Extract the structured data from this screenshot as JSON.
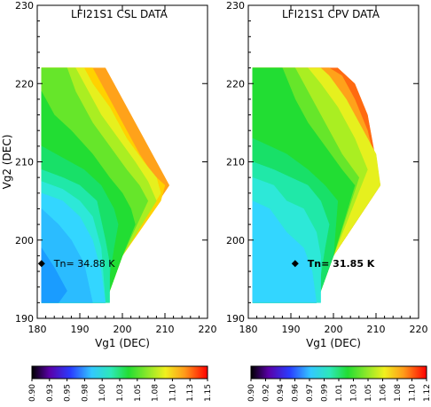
{
  "chart_data": [
    {
      "type": "heatmap",
      "title": "LFI21S1 CSL DATA",
      "xlabel": "Vg1 (DEC)",
      "ylabel": "Vg2 (DEC)",
      "xlim": [
        180,
        220
      ],
      "ylim": [
        190,
        230
      ],
      "xticks": [
        180,
        190,
        200,
        210,
        220
      ],
      "yticks": [
        190,
        200,
        210,
        220,
        230
      ],
      "marker": {
        "x": 181,
        "y": 197,
        "label": "Tn= 34.88 K"
      },
      "colorbar": {
        "min": 0.9,
        "max": 1.15,
        "tick_labels": [
          "0.90",
          "0.93",
          "0.95",
          "0.98",
          "1.00",
          "1.03",
          "1.05",
          "1.08",
          "1.10",
          "1.13",
          "1.15"
        ]
      },
      "contour_bands": [
        {
          "level": 0.97,
          "color": "#1a9cff",
          "points": [
            [
              181,
              199
            ],
            [
              184,
              196.5
            ],
            [
              187,
              193.5
            ],
            [
              185,
              192
            ],
            [
              181,
              192
            ]
          ]
        },
        {
          "level": 0.98,
          "color": "#2bbcff",
          "points": [
            [
              181,
              204
            ],
            [
              185,
              202
            ],
            [
              188,
              200
            ],
            [
              191,
              197
            ],
            [
              193,
              192
            ],
            [
              181,
              192
            ]
          ]
        },
        {
          "level": 0.99,
          "color": "#33d6ff",
          "points": [
            [
              181,
              206
            ],
            [
              186,
              205
            ],
            [
              190,
              203
            ],
            [
              193,
              200
            ],
            [
              195,
              196
            ],
            [
              196,
              192
            ],
            [
              181,
              192
            ]
          ]
        },
        {
          "level": 1.0,
          "color": "#2de8d8",
          "points": [
            [
              181,
              207.5
            ],
            [
              186,
              206.5
            ],
            [
              190,
              205
            ],
            [
              193,
              203
            ],
            [
              195,
              199
            ],
            [
              196,
              192
            ],
            [
              181,
              192
            ]
          ]
        },
        {
          "level": 1.01,
          "color": "#20e8a8",
          "points": [
            [
              181,
              209
            ],
            [
              186,
              208
            ],
            [
              190,
              207
            ],
            [
              194,
              205
            ],
            [
              196,
              200
            ],
            [
              197,
              197
            ],
            [
              197,
              192
            ],
            [
              181,
              192
            ]
          ]
        },
        {
          "level": 1.02,
          "color": "#18e068",
          "points": [
            [
              181,
              212
            ],
            [
              186,
              210.5
            ],
            [
              191,
              209
            ],
            [
              195,
              207
            ],
            [
              198,
              204
            ],
            [
              199,
              202
            ],
            [
              198,
              199
            ],
            [
              196,
              192
            ],
            [
              181,
              192
            ]
          ]
        },
        {
          "level": 1.03,
          "color": "#22dd33",
          "points": [
            [
              181,
              219
            ],
            [
              184,
              216
            ],
            [
              188,
              214
            ],
            [
              193,
              211
            ],
            [
              197,
              208
            ],
            [
              200,
              206
            ],
            [
              202,
              204
            ],
            [
              203,
              202
            ],
            [
              200,
              198
            ],
            [
              196,
              192
            ],
            [
              181,
              192
            ]
          ]
        },
        {
          "level": 1.05,
          "color": "#66e62a",
          "points": [
            [
              181,
              222
            ],
            [
              187,
              222
            ],
            [
              189,
              219
            ],
            [
              193,
              215
            ],
            [
              197,
              212
            ],
            [
              201,
              209
            ],
            [
              204,
              207
            ],
            [
              206,
              205
            ],
            [
              200,
              198
            ],
            [
              196,
              192
            ],
            [
              181,
              192
            ]
          ]
        },
        {
          "level": 1.07,
          "color": "#aaee22",
          "points": [
            [
              181,
              222
            ],
            [
              189,
              222
            ],
            [
              191,
              220
            ],
            [
              195,
              216
            ],
            [
              199,
              213
            ],
            [
              203,
              210
            ],
            [
              206,
              207.5
            ],
            [
              208,
              205
            ],
            [
              200,
              198
            ],
            [
              196,
              192
            ],
            [
              181,
              192
            ]
          ]
        },
        {
          "level": 1.09,
          "color": "#e6f01e",
          "points": [
            [
              181,
              222
            ],
            [
              191,
              222
            ],
            [
              193,
              220
            ],
            [
              197,
              217
            ],
            [
              201,
              213
            ],
            [
              205,
              210
            ],
            [
              208,
              208
            ],
            [
              209,
              206
            ],
            [
              200,
              198
            ],
            [
              196,
              192
            ],
            [
              181,
              192
            ]
          ]
        },
        {
          "level": 1.11,
          "color": "#ffd200",
          "points": [
            [
              181,
              222
            ],
            [
              193,
              222
            ],
            [
              196,
              219
            ],
            [
              200,
              215
            ],
            [
              204,
              211
            ],
            [
              207,
              208.5
            ],
            [
              210,
              207
            ],
            [
              209,
              205
            ],
            [
              200,
              198
            ],
            [
              196,
              192
            ],
            [
              181,
              192
            ]
          ]
        },
        {
          "level": 1.13,
          "color": "#ffa21a",
          "points": [
            [
              181,
              222
            ],
            [
              196,
              222
            ],
            [
              197,
              221
            ],
            [
              201,
              217
            ],
            [
              205,
              213
            ],
            [
              208,
              210
            ],
            [
              211,
              207
            ],
            [
              200,
              198
            ],
            [
              196,
              192
            ],
            [
              181,
              192
            ]
          ]
        }
      ]
    },
    {
      "type": "heatmap",
      "title": "LFI21S1 CPV DATA",
      "xlabel": "Vg1 (DEC)",
      "ylabel": "",
      "xlim": [
        180,
        220
      ],
      "ylim": [
        190,
        230
      ],
      "xticks": [
        180,
        190,
        200,
        210,
        220
      ],
      "yticks": [
        190,
        200,
        210,
        220,
        230
      ],
      "marker": {
        "x": 191,
        "y": 197,
        "label": "Tn= 31.85 K"
      },
      "colorbar": {
        "min": 0.9,
        "max": 1.12,
        "tick_labels": [
          "0.90",
          "0.92",
          "0.94",
          "0.96",
          "0.97",
          "0.99",
          "1.01",
          "1.03",
          "1.05",
          "1.06",
          "1.08",
          "1.10",
          "1.12"
        ]
      },
      "contour_bands": [
        {
          "level": 0.97,
          "color": "#33d6ff",
          "points": [
            [
              181,
              205
            ],
            [
              185,
              204
            ],
            [
              189,
              201
            ],
            [
              193,
              199
            ],
            [
              195,
              196
            ],
            [
              196,
              192
            ],
            [
              181,
              192
            ]
          ]
        },
        {
          "level": 0.98,
          "color": "#2de8d8",
          "points": [
            [
              181,
              208
            ],
            [
              186,
              207
            ],
            [
              189,
              205
            ],
            [
              193,
              204
            ],
            [
              196,
              201
            ],
            [
              197,
              198
            ],
            [
              197,
              192
            ],
            [
              181,
              192
            ]
          ]
        },
        {
          "level": 1.0,
          "color": "#20e8a8",
          "points": [
            [
              181,
              210
            ],
            [
              186,
              209
            ],
            [
              190,
              208
            ],
            [
              194,
              207
            ],
            [
              197,
              205
            ],
            [
              199,
              202
            ],
            [
              198,
              199
            ],
            [
              196,
              192
            ],
            [
              181,
              192
            ]
          ]
        },
        {
          "level": 1.01,
          "color": "#18e068",
          "points": [
            [
              181,
              213
            ],
            [
              185,
              212
            ],
            [
              189,
              211
            ],
            [
              194,
              209
            ],
            [
              198,
              207
            ],
            [
              201,
              205
            ],
            [
              200,
              198
            ],
            [
              196,
              192
            ],
            [
              181,
              192
            ]
          ]
        },
        {
          "level": 1.03,
          "color": "#22dd33",
          "points": [
            [
              181,
              222
            ],
            [
              188,
              222
            ],
            [
              191,
              218
            ],
            [
              194,
              215
            ],
            [
              198,
              212
            ],
            [
              202,
              209
            ],
            [
              205,
              207
            ],
            [
              200,
              198
            ],
            [
              196,
              192
            ],
            [
              181,
              192
            ]
          ]
        },
        {
          "level": 1.05,
          "color": "#66e62a",
          "points": [
            [
              181,
              222
            ],
            [
              191,
              222
            ],
            [
              194,
              219
            ],
            [
              198,
              215
            ],
            [
              202,
              211
            ],
            [
              206,
              208
            ],
            [
              200,
              198
            ],
            [
              196,
              192
            ],
            [
              181,
              192
            ]
          ]
        },
        {
          "level": 1.07,
          "color": "#aaee22",
          "points": [
            [
              181,
              222
            ],
            [
              194,
              222
            ],
            [
              197,
              220
            ],
            [
              201,
              217
            ],
            [
              205,
              213
            ],
            [
              208,
              209
            ],
            [
              200,
              198
            ],
            [
              196,
              192
            ],
            [
              181,
              192
            ]
          ]
        },
        {
          "level": 1.08,
          "color": "#e6f01e",
          "points": [
            [
              181,
              222
            ],
            [
              197,
              222
            ],
            [
              199,
              221
            ],
            [
              203,
              218
            ],
            [
              206,
              215
            ],
            [
              210,
              211
            ],
            [
              211,
              207
            ],
            [
              200,
              198
            ],
            [
              196,
              192
            ],
            [
              181,
              192
            ]
          ]
        },
        {
          "level": 1.1,
          "color": "#ffa21a",
          "points": [
            [
              181,
              222
            ],
            [
              199,
              222
            ],
            [
              202,
              221
            ],
            [
              205,
              218
            ],
            [
              208,
              214
            ],
            [
              211,
              207
            ],
            [
              200,
              198
            ],
            [
              196,
              192
            ],
            [
              181,
              192
            ]
          ]
        },
        {
          "level": 1.11,
          "color": "#ff6a10",
          "points": [
            [
              181,
              222
            ],
            [
              201,
              222
            ],
            [
              205,
              220
            ],
            [
              208,
              216
            ],
            [
              211,
              207
            ],
            [
              200,
              198
            ],
            [
              196,
              192
            ],
            [
              181,
              192
            ]
          ]
        }
      ]
    }
  ]
}
